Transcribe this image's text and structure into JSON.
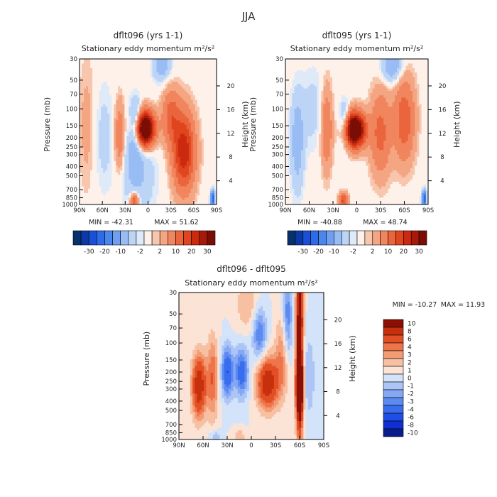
{
  "figure": {
    "season_title": "JJA"
  },
  "chart_data": [
    {
      "type": "heatmap",
      "title": "dflt096 (yrs 1-1)",
      "subtitle": "Stationary eddy momentum",
      "units": "m²/s²",
      "xlabel": "",
      "ylabel": "Pressure (mb)",
      "y2label": "Height (km)",
      "xticks": [
        "90N",
        "60N",
        "30N",
        "0",
        "30S",
        "60S",
        "90S"
      ],
      "yticks": [
        "30",
        "50",
        "70",
        "100",
        "150",
        "200",
        "250",
        "300",
        "400",
        "500",
        "700",
        "850",
        "1000"
      ],
      "y2ticks": [
        "20",
        "16",
        "12",
        "8",
        "4"
      ],
      "x_range": [
        90,
        -90
      ],
      "y_range_mb": [
        1000,
        30
      ],
      "min_label": "MIN = -42.31",
      "max_label": "MAX = 51.62",
      "colorbar": {
        "orientation": "horizontal",
        "labels": [
          "-30",
          "-20",
          "-10",
          "-2",
          "2",
          "10",
          "20",
          "30"
        ],
        "levels": [
          -40,
          -30,
          -25,
          -20,
          -15,
          -10,
          -5,
          -2,
          -1,
          1,
          2,
          5,
          10,
          15,
          20,
          25,
          30,
          40
        ]
      },
      "features": [
        {
          "lat": 5,
          "p": 160,
          "amp": 50,
          "slat": 9,
          "slogp": 0.12
        },
        {
          "lat": -47,
          "p": 280,
          "amp": 24,
          "slat": 10,
          "slogp": 0.28
        },
        {
          "lat": -30,
          "p": 120,
          "amp": 12,
          "slat": 8,
          "slogp": 0.2
        },
        {
          "lat": 37,
          "p": 190,
          "amp": 10,
          "slat": 5,
          "slogp": 0.25
        },
        {
          "lat": 15,
          "p": 150,
          "amp": -16,
          "slat": 5,
          "slogp": 0.15
        },
        {
          "lat": 20,
          "p": 260,
          "amp": -5,
          "slat": 10,
          "slogp": 0.3
        },
        {
          "lat": -18,
          "p": 35,
          "amp": -8,
          "slat": 8,
          "slogp": 0.12
        },
        {
          "lat": 10,
          "p": 500,
          "amp": -4,
          "slat": 15,
          "slogp": 0.3
        },
        {
          "lat": 58,
          "p": 200,
          "amp": -3,
          "slat": 10,
          "slogp": 0.4
        },
        {
          "lat": 80,
          "p": 150,
          "amp": 3,
          "slat": 8,
          "slogp": 0.5
        },
        {
          "lat": 18,
          "p": 930,
          "amp": 16,
          "slat": 4,
          "slogp": 0.06
        },
        {
          "lat": -85,
          "p": 880,
          "amp": -25,
          "slat": 2,
          "slogp": 0.06
        }
      ]
    },
    {
      "type": "heatmap",
      "title": "dflt095 (yrs 1-1)",
      "subtitle": "Stationary eddy momentum",
      "units": "m²/s²",
      "xlabel": "",
      "ylabel": "Pressure (mb)",
      "y2label": "Height (km)",
      "xticks": [
        "90N",
        "60N",
        "30N",
        "0",
        "30S",
        "60S",
        "90S"
      ],
      "yticks": [
        "30",
        "50",
        "70",
        "100",
        "150",
        "200",
        "250",
        "300",
        "400",
        "500",
        "700",
        "850",
        "1000"
      ],
      "y2ticks": [
        "20",
        "16",
        "12",
        "8",
        "4"
      ],
      "x_range": [
        90,
        -90
      ],
      "y_range_mb": [
        1000,
        30
      ],
      "min_label": "MIN = -40.88",
      "max_label": "MAX = 48.74",
      "colorbar": {
        "orientation": "horizontal",
        "labels": [
          "-30",
          "-20",
          "-10",
          "-2",
          "2",
          "10",
          "20",
          "30"
        ],
        "levels": [
          -40,
          -30,
          -25,
          -20,
          -15,
          -10,
          -5,
          -2,
          -1,
          1,
          2,
          5,
          10,
          15,
          20,
          25,
          30,
          40
        ]
      },
      "features": [
        {
          "lat": 3,
          "p": 165,
          "amp": 48,
          "slat": 9,
          "slogp": 0.12
        },
        {
          "lat": -30,
          "p": 180,
          "amp": 12,
          "slat": 9,
          "slogp": 0.3
        },
        {
          "lat": -60,
          "p": 130,
          "amp": 14,
          "slat": 9,
          "slogp": 0.3
        },
        {
          "lat": 38,
          "p": 160,
          "amp": 10,
          "slat": 5,
          "slogp": 0.3
        },
        {
          "lat": 15,
          "p": 150,
          "amp": -12,
          "slat": 5,
          "slogp": 0.15
        },
        {
          "lat": 75,
          "p": 220,
          "amp": -8,
          "slat": 6,
          "slogp": 0.35
        },
        {
          "lat": -45,
          "p": 35,
          "amp": -10,
          "slat": 9,
          "slogp": 0.12
        },
        {
          "lat": 55,
          "p": 100,
          "amp": -3,
          "slat": 10,
          "slogp": 0.3
        },
        {
          "lat": 17,
          "p": 930,
          "amp": 16,
          "slat": 4,
          "slogp": 0.06
        },
        {
          "lat": -85,
          "p": 880,
          "amp": -25,
          "slat": 2,
          "slogp": 0.06
        }
      ]
    },
    {
      "type": "heatmap",
      "title": "dflt096 - dflt095",
      "subtitle": "Stationary eddy momentum",
      "units": "m²/s²",
      "xlabel": "",
      "ylabel": "Pressure (mb)",
      "y2label": "Height (km)",
      "xticks": [
        "90N",
        "60N",
        "30N",
        "0",
        "30S",
        "60S",
        "90S"
      ],
      "yticks": [
        "30",
        "50",
        "70",
        "100",
        "150",
        "200",
        "250",
        "300",
        "400",
        "500",
        "700",
        "850",
        "1000"
      ],
      "y2ticks": [
        "20",
        "16",
        "12",
        "8",
        "4"
      ],
      "x_range": [
        90,
        -90
      ],
      "y_range_mb": [
        1000,
        30
      ],
      "min_label": "MIN = -10.27",
      "max_label": "MAX = 11.93",
      "colorbar": {
        "orientation": "vertical",
        "labels": [
          "10",
          "8",
          "6",
          "4",
          "3",
          "2",
          "1",
          "0",
          "-1",
          "-2",
          "-3",
          "-4",
          "-6",
          "-8",
          "-10"
        ],
        "levels": [
          -10,
          -8,
          -6,
          -4,
          -3,
          -2,
          -1,
          0,
          1,
          2,
          3,
          4,
          6,
          8,
          10
        ]
      },
      "features": [
        {
          "lat": -60,
          "p": 60,
          "amp": 11,
          "slat": 3,
          "slogp": 0.45
        },
        {
          "lat": -60,
          "p": 280,
          "amp": 12,
          "slat": 3,
          "slogp": 0.2
        },
        {
          "lat": -60,
          "p": 500,
          "amp": 5,
          "slat": 3,
          "slogp": 0.3
        },
        {
          "lat": -20,
          "p": 260,
          "amp": 8,
          "slat": 9,
          "slogp": 0.18
        },
        {
          "lat": 65,
          "p": 280,
          "amp": 8,
          "slat": 6,
          "slogp": 0.22
        },
        {
          "lat": 48,
          "p": 230,
          "amp": 4,
          "slat": 5,
          "slogp": 0.3
        },
        {
          "lat": 30,
          "p": 200,
          "amp": -6,
          "slat": 5,
          "slogp": 0.18
        },
        {
          "lat": 12,
          "p": 200,
          "amp": -5,
          "slat": 6,
          "slogp": 0.18
        },
        {
          "lat": -10,
          "p": 80,
          "amp": -4,
          "slat": 6,
          "slogp": 0.2
        },
        {
          "lat": -45,
          "p": 55,
          "amp": -4,
          "slat": 4,
          "slogp": 0.3
        },
        {
          "lat": -38,
          "p": 140,
          "amp": 3,
          "slat": 6,
          "slogp": 0.3
        },
        {
          "lat": 5,
          "p": 40,
          "amp": 2,
          "slat": 10,
          "slogp": 0.2
        },
        {
          "lat": -72,
          "p": 220,
          "amp": -2,
          "slat": 5,
          "slogp": 0.3
        },
        {
          "lat": 15,
          "p": 930,
          "amp": 2,
          "slat": 5,
          "slogp": 0.05
        },
        {
          "lat": 45,
          "p": 950,
          "amp": -2,
          "slat": 5,
          "slogp": 0.05
        }
      ]
    }
  ],
  "palette": {
    "blues": [
      "#08306b",
      "#0b3aa8",
      "#1a4fd6",
      "#2e6be8",
      "#4a86ec",
      "#6f9ff0",
      "#98bcf3",
      "#bcd4f6",
      "#dfeaf9"
    ],
    "reds": [
      "#fbe3d6",
      "#f7c6ad",
      "#f4a683",
      "#f0855e",
      "#ea643c",
      "#e0451f",
      "#cb2a0f",
      "#a8190a",
      "#7a0e05"
    ],
    "diff_colors": [
      "#0a1d8c",
      "#0f2fd4",
      "#1f4ee6",
      "#3a6cee",
      "#5c8af1",
      "#84a8f4",
      "#acc5f6",
      "#d3e3f9",
      "#fbe3d6",
      "#f7c0a2",
      "#f39b74",
      "#ee744a",
      "#e34f24",
      "#c6300d",
      "#8c0e04"
    ]
  }
}
